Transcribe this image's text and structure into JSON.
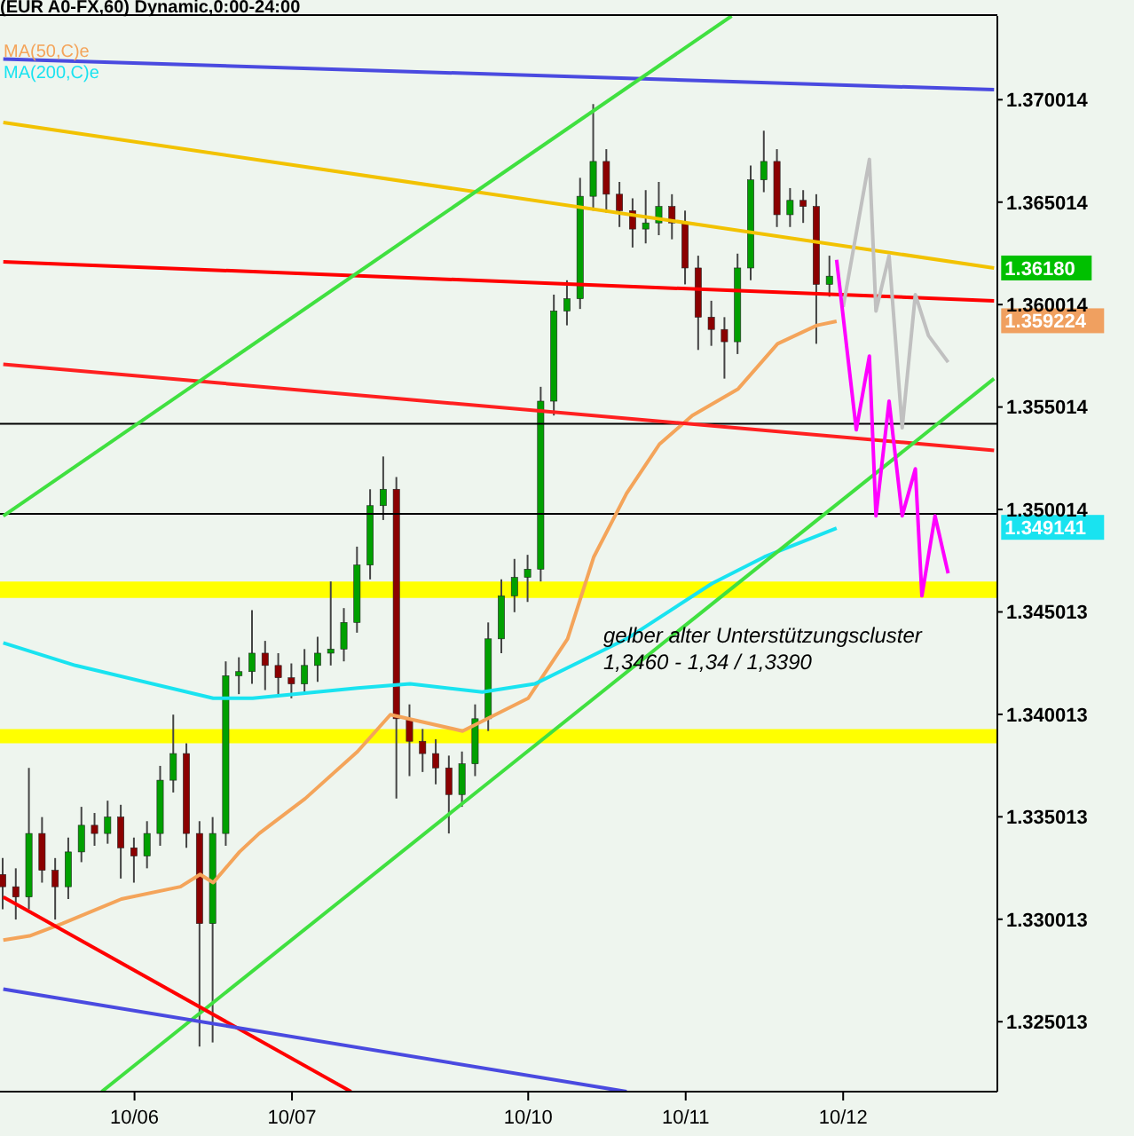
{
  "chart_data": {
    "type": "candlestick",
    "title": "(EUR A0-FX,60) Dynamic,0:00-24:00",
    "categories": [
      null,
      null,
      null,
      null,
      null,
      null,
      null,
      null,
      null,
      null,
      null,
      null,
      null,
      null,
      null,
      null,
      null,
      null,
      null,
      null,
      "10/06",
      null,
      null,
      null,
      null,
      null,
      null,
      null,
      null,
      null,
      null,
      null,
      null,
      null,
      null,
      null,
      null,
      null,
      null,
      null,
      null,
      null,
      null,
      null,
      "10/07",
      null,
      null,
      null,
      null,
      null,
      null,
      null,
      null,
      null,
      null,
      null,
      null,
      null,
      null,
      null,
      null,
      null,
      null,
      null,
      null,
      null,
      null,
      null,
      null,
      null,
      null,
      null,
      null,
      null,
      null,
      null,
      null,
      null,
      null,
      null,
      "10/10",
      null,
      null,
      null,
      null,
      null,
      null,
      null,
      null,
      null,
      null,
      null,
      null,
      null,
      null,
      null,
      null,
      null,
      null,
      null,
      null,
      null,
      null,
      null,
      "10/11",
      null,
      null,
      null,
      null,
      null,
      null,
      null,
      null,
      null,
      null,
      null,
      null,
      null,
      null,
      null,
      null,
      null,
      null,
      null,
      null,
      null,
      null,
      null,
      "10/12",
      null,
      null,
      null,
      null,
      null,
      null,
      null,
      null,
      null,
      null,
      null,
      null,
      null,
      null,
      null,
      null,
      null,
      null,
      null,
      null,
      null,
      null,
      null
    ],
    "ohlc": [
      [
        1.3322,
        1.333,
        1.3305,
        1.3316
      ],
      null,
      [
        1.3316,
        1.3325,
        1.33,
        1.3311
      ],
      null,
      [
        1.3311,
        1.3374,
        1.3305,
        1.3342
      ],
      null,
      [
        1.3342,
        1.335,
        1.3318,
        1.3324
      ],
      null,
      [
        1.3324,
        1.333,
        1.33,
        1.3316
      ],
      null,
      [
        1.3316,
        1.334,
        1.331,
        1.3333
      ],
      null,
      [
        1.3333,
        1.3355,
        1.3328,
        1.3346
      ],
      null,
      [
        1.3346,
        1.3352,
        1.3336,
        1.3342
      ],
      null,
      [
        1.3342,
        1.3358,
        1.3337,
        1.335
      ],
      null,
      [
        1.335,
        1.3356,
        1.332,
        1.3335
      ],
      null,
      [
        1.3335,
        1.334,
        1.3318,
        1.3331
      ],
      null,
      [
        1.3331,
        1.3348,
        1.3325,
        1.3342
      ],
      null,
      [
        1.3342,
        1.3375,
        1.3336,
        1.3368
      ],
      null,
      [
        1.3368,
        1.34,
        1.3362,
        1.3381
      ],
      null,
      [
        1.3381,
        1.3386,
        1.3335,
        1.3342
      ],
      null,
      [
        1.3342,
        1.3348,
        1.3238,
        1.3298
      ],
      null,
      [
        1.3298,
        1.335,
        1.324,
        1.3342
      ],
      null,
      [
        1.3342,
        1.3426,
        1.3336,
        1.3419
      ],
      null,
      [
        1.3419,
        1.3428,
        1.341,
        1.3421
      ],
      null,
      [
        1.3421,
        1.3451,
        1.3415,
        1.343
      ],
      null,
      [
        1.343,
        1.3436,
        1.3412,
        1.3424
      ],
      null,
      [
        1.3424,
        1.343,
        1.341,
        1.3418
      ],
      null,
      [
        1.3418,
        1.3425,
        1.3408,
        1.3415
      ],
      null,
      [
        1.3415,
        1.3432,
        1.341,
        1.3424
      ],
      null,
      [
        1.3424,
        1.3438,
        1.3416,
        1.343
      ],
      null,
      [
        1.343,
        1.3465,
        1.3424,
        1.3432
      ],
      null,
      [
        1.3432,
        1.3452,
        1.3426,
        1.3445
      ],
      null,
      [
        1.3445,
        1.3482,
        1.344,
        1.3473
      ],
      null,
      [
        1.3473,
        1.351,
        1.3466,
        1.3502
      ],
      null,
      [
        1.3502,
        1.3526,
        1.3495,
        1.351
      ],
      null,
      [
        1.351,
        1.3516,
        1.3359,
        1.3398
      ],
      null,
      [
        1.3398,
        1.3405,
        1.337,
        1.3387
      ],
      null,
      [
        1.3387,
        1.3393,
        1.3372,
        1.3381
      ],
      null,
      [
        1.3381,
        1.3388,
        1.3366,
        1.3374
      ],
      null,
      [
        1.3374,
        1.338,
        1.3342,
        1.3361
      ],
      null,
      [
        1.3361,
        1.3382,
        1.3355,
        1.3376
      ],
      null,
      [
        1.3376,
        1.3405,
        1.337,
        1.3398
      ],
      null,
      [
        1.3398,
        1.3445,
        1.3392,
        1.3437
      ],
      null,
      [
        1.3437,
        1.3466,
        1.343,
        1.3458
      ],
      null,
      [
        1.3458,
        1.3476,
        1.345,
        1.3467
      ],
      null,
      [
        1.3467,
        1.3478,
        1.3455,
        1.3471
      ],
      null,
      [
        1.3471,
        1.356,
        1.3465,
        1.3553
      ],
      null,
      [
        1.3553,
        1.3605,
        1.3546,
        1.3597
      ],
      null,
      [
        1.3597,
        1.3612,
        1.359,
        1.3603
      ],
      null,
      [
        1.3603,
        1.3662,
        1.3598,
        1.3653
      ],
      null,
      [
        1.3653,
        1.3698,
        1.3646,
        1.367
      ],
      null,
      [
        1.367,
        1.3676,
        1.3645,
        1.3654
      ],
      null,
      [
        1.3654,
        1.366,
        1.3638,
        1.3646
      ],
      null,
      [
        1.3646,
        1.3652,
        1.3628,
        1.3637
      ],
      null,
      [
        1.3637,
        1.3656,
        1.363,
        1.364
      ],
      null,
      [
        1.364,
        1.366,
        1.3634,
        1.3648
      ],
      null,
      [
        1.3648,
        1.3654,
        1.3632,
        1.364
      ],
      null,
      [
        1.364,
        1.3646,
        1.361,
        1.3618
      ],
      null,
      [
        1.3618,
        1.3624,
        1.3578,
        1.3594
      ],
      null,
      [
        1.3594,
        1.3602,
        1.358,
        1.3588
      ],
      null,
      [
        1.3588,
        1.3594,
        1.3564,
        1.3582
      ],
      null,
      [
        1.3582,
        1.3625,
        1.3576,
        1.3618
      ],
      null,
      [
        1.3618,
        1.3668,
        1.3612,
        1.3661
      ],
      null,
      [
        1.3661,
        1.3685,
        1.3655,
        1.367
      ],
      null,
      [
        1.367,
        1.3676,
        1.3638,
        1.3644
      ],
      null,
      [
        1.3644,
        1.3657,
        1.3638,
        1.3651
      ],
      null,
      [
        1.3651,
        1.3656,
        1.364,
        1.3648
      ],
      null,
      [
        1.3648,
        1.3654,
        1.3581,
        1.361
      ],
      null,
      [
        1.361,
        1.3624,
        1.3604,
        1.3614
      ],
      null,
      null,
      null,
      null,
      null,
      null,
      null,
      null,
      null,
      null,
      null,
      null,
      null,
      null,
      null,
      null,
      null,
      null,
      null,
      null,
      null,
      null,
      null,
      null,
      null
    ],
    "series": [
      {
        "name": "MA(50,C)e",
        "type": "line",
        "color": "#f4a45a",
        "values": [
          1.329,
          null,
          null,
          null,
          1.3292,
          null,
          null,
          null,
          null,
          1.3298,
          null,
          null,
          null,
          null,
          null,
          null,
          null,
          null,
          1.331,
          null,
          null,
          null,
          null,
          null,
          null,
          null,
          null,
          1.3316,
          null,
          null,
          1.3322,
          null,
          1.3318,
          null,
          null,
          null,
          1.3333,
          null,
          null,
          1.3342,
          null,
          null,
          null,
          null,
          null,
          null,
          1.3359,
          null,
          null,
          null,
          null,
          null,
          null,
          null,
          1.3382,
          null,
          null,
          null,
          null,
          1.34,
          null,
          null,
          null,
          null,
          null,
          null,
          null,
          null,
          null,
          null,
          1.3392,
          null,
          null,
          null,
          null,
          null,
          null,
          null,
          null,
          null,
          1.3408,
          null,
          null,
          null,
          null,
          null,
          1.3437,
          null,
          null,
          null,
          1.3477,
          null,
          null,
          null,
          null,
          1.3508,
          null,
          null,
          null,
          null,
          1.3532,
          null,
          null,
          null,
          null,
          1.3546,
          null,
          null,
          null,
          null,
          null,
          null,
          1.3559,
          null,
          null,
          null,
          null,
          null,
          1.3581,
          null,
          null,
          null,
          null,
          null,
          1.359,
          null,
          null,
          1.3592,
          null,
          null,
          null,
          null,
          null,
          null,
          null,
          null,
          null,
          null,
          null,
          null,
          null,
          null,
          null,
          null,
          null,
          null,
          null,
          null,
          null,
          null,
          null,
          null
        ]
      },
      {
        "name": "MA(200,C)e",
        "type": "line",
        "color": "#19e3f0",
        "values": [
          1.3435,
          null,
          null,
          null,
          null,
          null,
          null,
          null,
          null,
          null,
          null,
          1.3424,
          null,
          null,
          null,
          null,
          null,
          null,
          null,
          null,
          null,
          null,
          null,
          null,
          null,
          null,
          null,
          null,
          null,
          null,
          null,
          null,
          1.3408,
          null,
          null,
          null,
          null,
          null,
          1.3408,
          null,
          null,
          null,
          null,
          null,
          null,
          null,
          null,
          null,
          null,
          null,
          null,
          null,
          null,
          null,
          1.3413,
          null,
          null,
          null,
          null,
          null,
          null,
          null,
          1.3415,
          null,
          null,
          null,
          null,
          null,
          null,
          null,
          null,
          null,
          null,
          1.3411,
          null,
          null,
          null,
          null,
          null,
          null,
          null,
          1.3415,
          null,
          null,
          null,
          null,
          null,
          null,
          null,
          null,
          null,
          null,
          null,
          null,
          null,
          1.3437,
          null,
          null,
          null,
          null,
          null,
          null,
          null,
          null,
          null,
          null,
          null,
          null,
          1.3464,
          null,
          null,
          null,
          null,
          null,
          null,
          null,
          1.3477,
          null,
          null,
          null,
          null,
          null,
          null,
          null,
          null,
          null,
          null,
          1.3491,
          null,
          null,
          null,
          null,
          null,
          null,
          null,
          null,
          null,
          null,
          null,
          null,
          null,
          null,
          null,
          null,
          null,
          null,
          null,
          null,
          null,
          null,
          null,
          null
        ]
      },
      {
        "type": "line",
        "color": "#f2c200",
        "values": [
          1.3689,
          null,
          null,
          null,
          null,
          null,
          null,
          null,
          null,
          null,
          null,
          null,
          null,
          null,
          null,
          null,
          null,
          null,
          null,
          null,
          null,
          null,
          null,
          null,
          null,
          null,
          null,
          null,
          null,
          null,
          null,
          null,
          null,
          null,
          null,
          null,
          null,
          null,
          null,
          null,
          null,
          null,
          null,
          null,
          null,
          null,
          null,
          null,
          null,
          null,
          null,
          null,
          null,
          null,
          null,
          null,
          null,
          null,
          null,
          null,
          null,
          null,
          null,
          null,
          null,
          null,
          null,
          null,
          null,
          null,
          null,
          null,
          null,
          null,
          null,
          null,
          null,
          null,
          null,
          null,
          null,
          null,
          null,
          null,
          null,
          null,
          null,
          null,
          null,
          null,
          null,
          null,
          null,
          null,
          null,
          null,
          null,
          null,
          null,
          null,
          null,
          null,
          null,
          null,
          null,
          null,
          null,
          null,
          null,
          null,
          null,
          null,
          null,
          null,
          null,
          null,
          null,
          null,
          null,
          null,
          null,
          null,
          null,
          null,
          null,
          null,
          null,
          null,
          null,
          null,
          null,
          null,
          null,
          null,
          null,
          null,
          null,
          null,
          null,
          null,
          null,
          null,
          null,
          null,
          null,
          null,
          null,
          null,
          null,
          null,
          null,
          1.3618
        ]
      },
      {
        "type": "line",
        "color": "#ff0000",
        "values": [
          1.3621,
          null,
          null,
          null,
          null,
          null,
          null,
          null,
          null,
          null,
          null,
          null,
          null,
          null,
          null,
          null,
          null,
          null,
          null,
          null,
          null,
          null,
          null,
          null,
          null,
          null,
          null,
          null,
          null,
          null,
          null,
          null,
          null,
          null,
          null,
          null,
          null,
          null,
          null,
          null,
          null,
          null,
          null,
          null,
          null,
          null,
          null,
          null,
          null,
          null,
          null,
          null,
          null,
          null,
          null,
          null,
          null,
          null,
          null,
          null,
          null,
          null,
          null,
          null,
          null,
          null,
          null,
          null,
          null,
          null,
          null,
          null,
          null,
          null,
          null,
          null,
          null,
          null,
          null,
          null,
          null,
          null,
          null,
          null,
          null,
          null,
          null,
          null,
          null,
          null,
          null,
          null,
          null,
          null,
          null,
          null,
          null,
          null,
          null,
          null,
          null,
          null,
          null,
          null,
          null,
          null,
          null,
          null,
          null,
          null,
          null,
          null,
          null,
          null,
          null,
          null,
          null,
          null,
          null,
          null,
          null,
          null,
          null,
          null,
          null,
          null,
          null,
          null,
          null,
          null,
          null,
          null,
          null,
          null,
          null,
          null,
          null,
          null,
          null,
          null,
          null,
          null,
          null,
          null,
          null,
          null,
          null,
          null,
          null,
          null,
          null,
          1.3602
        ]
      },
      {
        "type": "line",
        "color": "#ff2020",
        "values": [
          1.3571,
          null,
          null,
          null,
          null,
          null,
          null,
          null,
          null,
          null,
          null,
          null,
          null,
          null,
          null,
          null,
          null,
          null,
          null,
          null,
          null,
          null,
          null,
          null,
          null,
          null,
          null,
          null,
          null,
          null,
          null,
          null,
          null,
          null,
          null,
          null,
          null,
          null,
          null,
          null,
          null,
          null,
          null,
          null,
          null,
          null,
          null,
          null,
          null,
          null,
          null,
          null,
          null,
          null,
          null,
          null,
          null,
          null,
          null,
          null,
          null,
          null,
          null,
          null,
          null,
          null,
          null,
          null,
          null,
          null,
          null,
          null,
          null,
          null,
          null,
          null,
          null,
          null,
          null,
          null,
          null,
          null,
          null,
          null,
          null,
          null,
          null,
          null,
          null,
          null,
          null,
          null,
          null,
          null,
          null,
          null,
          null,
          null,
          null,
          null,
          null,
          null,
          null,
          null,
          null,
          null,
          null,
          null,
          null,
          null,
          null,
          null,
          null,
          null,
          null,
          null,
          null,
          null,
          null,
          null,
          null,
          null,
          null,
          null,
          null,
          null,
          null,
          null,
          null,
          null,
          null,
          null,
          null,
          null,
          null,
          null,
          null,
          null,
          null,
          null,
          null,
          null,
          null,
          null,
          null,
          null,
          null,
          null,
          null,
          null,
          null,
          1.3529
        ]
      },
      {
        "type": "line",
        "color": "#4a4ae0",
        "values": [
          1.372,
          null,
          null,
          null,
          null,
          null,
          null,
          null,
          null,
          null,
          null,
          null,
          null,
          null,
          null,
          null,
          null,
          null,
          null,
          null,
          null,
          null,
          null,
          null,
          null,
          null,
          null,
          null,
          null,
          null,
          null,
          null,
          null,
          null,
          null,
          null,
          null,
          null,
          null,
          null,
          null,
          null,
          null,
          null,
          null,
          null,
          null,
          null,
          null,
          null,
          null,
          null,
          null,
          null,
          null,
          null,
          null,
          null,
          null,
          null,
          null,
          null,
          null,
          null,
          null,
          null,
          null,
          null,
          null,
          null,
          null,
          null,
          null,
          null,
          null,
          null,
          null,
          null,
          null,
          null,
          null,
          null,
          null,
          null,
          null,
          null,
          null,
          null,
          null,
          null,
          null,
          null,
          null,
          null,
          null,
          null,
          null,
          null,
          null,
          null,
          null,
          null,
          null,
          null,
          null,
          null,
          null,
          null,
          null,
          null,
          null,
          null,
          null,
          null,
          null,
          null,
          null,
          null,
          null,
          null,
          null,
          null,
          null,
          null,
          null,
          null,
          null,
          null,
          null,
          null,
          null,
          null,
          null,
          null,
          null,
          null,
          null,
          null,
          null,
          null,
          null,
          null,
          null,
          null,
          null,
          null,
          null,
          null,
          null,
          null,
          null,
          1.3705
        ]
      },
      {
        "type": "line",
        "color": "#40e040",
        "values": [
          1.3497,
          null,
          null,
          null,
          null,
          null,
          null,
          null,
          null,
          null,
          null,
          null,
          null,
          null,
          null,
          null,
          null,
          null,
          null,
          null,
          null,
          null,
          null,
          null,
          null,
          null,
          null,
          null,
          null,
          null,
          null,
          null,
          null,
          null,
          null,
          null,
          null,
          null,
          null,
          null,
          null,
          null,
          null,
          null,
          null,
          null,
          null,
          null,
          null,
          null,
          null,
          null,
          null,
          null,
          null,
          null,
          null,
          null,
          null,
          null,
          null,
          null,
          null,
          null,
          null,
          null,
          null,
          null,
          null,
          null,
          null,
          null,
          null,
          null,
          null,
          null,
          null,
          null,
          null,
          null,
          null,
          null,
          null,
          null,
          null,
          null,
          null,
          null,
          null,
          null,
          null,
          null,
          null,
          null,
          null,
          null,
          null,
          null,
          null,
          null,
          null,
          null,
          null,
          null,
          null,
          null,
          null,
          null,
          null,
          null,
          null,
          1.3741,
          null,
          null,
          null,
          null,
          null,
          null,
          null,
          null,
          null,
          null,
          null,
          null,
          null,
          null,
          null,
          null,
          null,
          null,
          null,
          null,
          null,
          null,
          null,
          null,
          null,
          null,
          null,
          null,
          null,
          null,
          null,
          null,
          null,
          null,
          null,
          null,
          null,
          null,
          null,
          null
        ]
      },
      {
        "type": "line",
        "color": "#40e040",
        "values": [
          null,
          null,
          null,
          null,
          null,
          null,
          null,
          null,
          null,
          null,
          null,
          null,
          null,
          null,
          null,
          1.3216,
          null,
          null,
          null,
          null,
          null,
          null,
          null,
          null,
          null,
          null,
          null,
          null,
          null,
          null,
          null,
          null,
          null,
          null,
          null,
          null,
          null,
          null,
          null,
          null,
          null,
          null,
          null,
          null,
          null,
          null,
          null,
          null,
          null,
          null,
          null,
          null,
          null,
          null,
          null,
          null,
          null,
          null,
          null,
          null,
          null,
          null,
          null,
          null,
          null,
          null,
          null,
          null,
          null,
          null,
          null,
          null,
          null,
          null,
          null,
          null,
          null,
          null,
          null,
          null,
          null,
          null,
          null,
          null,
          null,
          null,
          null,
          null,
          null,
          null,
          null,
          null,
          null,
          null,
          null,
          null,
          null,
          null,
          null,
          null,
          null,
          null,
          null,
          null,
          null,
          null,
          null,
          null,
          null,
          null,
          null,
          null,
          null,
          null,
          null,
          null,
          null,
          null,
          null,
          null,
          null,
          null,
          null,
          null,
          null,
          null,
          null,
          null,
          null,
          null,
          null,
          null,
          null,
          null,
          null,
          null,
          null,
          null,
          null,
          null,
          null,
          null,
          null,
          null,
          null,
          null,
          null,
          null,
          null,
          null,
          null,
          1.3564
        ]
      },
      {
        "type": "line",
        "color": "#ff0000",
        "values": [
          1.3311,
          null,
          null,
          null,
          null,
          null,
          null,
          null,
          null,
          null,
          null,
          null,
          null,
          null,
          null,
          null,
          null,
          null,
          null,
          null,
          null,
          null,
          null,
          null,
          null,
          null,
          null,
          null,
          null,
          null,
          null,
          null,
          null,
          null,
          null,
          null,
          null,
          null,
          null,
          null,
          null,
          null,
          null,
          null,
          null,
          null,
          null,
          null,
          null,
          null,
          null,
          null,
          null,
          1.3216,
          null,
          null,
          null,
          null,
          null,
          null,
          null,
          null,
          null,
          null,
          null,
          null,
          null,
          null,
          null,
          null,
          null,
          null,
          null,
          null,
          null,
          null,
          null,
          null,
          null,
          null,
          null,
          null,
          null,
          null,
          null,
          null,
          null,
          null,
          null,
          null,
          null,
          null,
          null,
          null,
          null,
          null,
          null,
          null,
          null,
          null,
          null,
          null,
          null,
          null,
          null,
          null,
          null,
          null,
          null,
          null,
          null,
          null,
          null,
          null,
          null,
          null,
          null,
          null,
          null,
          null,
          null,
          null,
          null,
          null,
          null,
          null,
          null,
          null,
          null,
          null,
          null,
          null,
          null,
          null,
          null,
          null,
          null,
          null,
          null,
          null,
          null,
          null,
          null,
          null,
          null,
          null,
          null,
          null,
          null,
          null,
          null,
          null
        ]
      },
      {
        "type": "line",
        "color": "#4a4ae0",
        "values": [
          1.3266,
          null,
          null,
          null,
          null,
          null,
          null,
          null,
          null,
          null,
          null,
          null,
          null,
          null,
          null,
          null,
          null,
          null,
          null,
          null,
          null,
          null,
          null,
          null,
          null,
          null,
          null,
          null,
          null,
          null,
          null,
          null,
          null,
          null,
          null,
          null,
          null,
          null,
          null,
          null,
          null,
          null,
          null,
          null,
          null,
          null,
          null,
          null,
          null,
          null,
          null,
          null,
          null,
          null,
          null,
          null,
          null,
          null,
          null,
          null,
          null,
          null,
          null,
          null,
          null,
          null,
          null,
          null,
          null,
          null,
          null,
          null,
          null,
          null,
          null,
          null,
          null,
          null,
          null,
          null,
          null,
          null,
          null,
          null,
          null,
          null,
          null,
          null,
          null,
          null,
          null,
          null,
          null,
          null,
          null,
          1.3216,
          null,
          null,
          null,
          null,
          null,
          null,
          null,
          null,
          null,
          null,
          null,
          null,
          null,
          null,
          null,
          null,
          null,
          null,
          null,
          null,
          null,
          null,
          null,
          null,
          null,
          null,
          null,
          null,
          null,
          null,
          null,
          null,
          null,
          null,
          null,
          null,
          null,
          null,
          null,
          null,
          null,
          null,
          null,
          null,
          null,
          null,
          null,
          null,
          null,
          null,
          null,
          null,
          null,
          null,
          null,
          null
        ]
      },
      {
        "type": "line",
        "color": "#c0c0c0",
        "values": [
          null,
          null,
          null,
          null,
          null,
          null,
          null,
          null,
          null,
          null,
          null,
          null,
          null,
          null,
          null,
          null,
          null,
          null,
          null,
          null,
          null,
          null,
          null,
          null,
          null,
          null,
          null,
          null,
          null,
          null,
          null,
          null,
          null,
          null,
          null,
          null,
          null,
          null,
          null,
          null,
          null,
          null,
          null,
          null,
          null,
          null,
          null,
          null,
          null,
          null,
          null,
          null,
          null,
          null,
          null,
          null,
          null,
          null,
          null,
          null,
          null,
          null,
          null,
          null,
          null,
          null,
          null,
          null,
          null,
          null,
          null,
          null,
          null,
          null,
          null,
          null,
          null,
          null,
          null,
          null,
          null,
          null,
          null,
          null,
          null,
          null,
          null,
          null,
          null,
          null,
          null,
          null,
          null,
          null,
          null,
          null,
          null,
          null,
          null,
          null,
          null,
          null,
          null,
          null,
          null,
          null,
          null,
          null,
          null,
          null,
          null,
          null,
          null,
          null,
          null,
          null,
          null,
          null,
          null,
          null,
          null,
          null,
          null,
          null,
          null,
          null,
          null,
          null,
          1.3599,
          null,
          null,
          null,
          1.3671,
          1.3597,
          null,
          1.3624,
          null,
          1.354,
          null,
          1.3605,
          null,
          1.3585,
          null,
          null,
          1.3572,
          null,
          null,
          null,
          null,
          null,
          null,
          null
        ]
      },
      {
        "type": "line",
        "color": "#ff00ff",
        "values": [
          null,
          null,
          null,
          null,
          null,
          null,
          null,
          null,
          null,
          null,
          null,
          null,
          null,
          null,
          null,
          null,
          null,
          null,
          null,
          null,
          null,
          null,
          null,
          null,
          null,
          null,
          null,
          null,
          null,
          null,
          null,
          null,
          null,
          null,
          null,
          null,
          null,
          null,
          null,
          null,
          null,
          null,
          null,
          null,
          null,
          null,
          null,
          null,
          null,
          null,
          null,
          null,
          null,
          null,
          null,
          null,
          null,
          null,
          null,
          null,
          null,
          null,
          null,
          null,
          null,
          null,
          null,
          null,
          null,
          null,
          null,
          null,
          null,
          null,
          null,
          null,
          null,
          null,
          null,
          null,
          null,
          null,
          null,
          null,
          null,
          null,
          null,
          null,
          null,
          null,
          null,
          null,
          null,
          null,
          null,
          null,
          null,
          null,
          null,
          null,
          null,
          null,
          null,
          null,
          null,
          null,
          null,
          null,
          null,
          null,
          null,
          null,
          null,
          null,
          null,
          null,
          null,
          null,
          null,
          null,
          null,
          null,
          null,
          null,
          null,
          null,
          null,
          1.3622,
          null,
          null,
          1.3539,
          null,
          1.3575,
          1.3497,
          null,
          1.3553,
          null,
          1.3497,
          null,
          1.352,
          1.3458,
          null,
          1.3497,
          null,
          1.3469,
          null,
          null,
          null,
          null,
          null,
          null,
          null
        ]
      }
    ],
    "ylim": [
      1.3216,
      1.3741
    ],
    "yticks": [
      1.325013,
      1.330013,
      1.335013,
      1.340013,
      1.345013,
      1.350014,
      1.355014,
      1.360014,
      1.365014,
      1.370014
    ],
    "ref_lines": [
      {
        "axis": "y",
        "value": 1.3542,
        "color": "#000000"
      },
      {
        "axis": "y",
        "value": 1.3498,
        "color": "#000000"
      }
    ],
    "bands": [
      {
        "axis": "y",
        "from": 1.3457,
        "to": 1.3465,
        "color": "#ffff00"
      },
      {
        "axis": "y",
        "from": 1.3386,
        "to": 1.3393,
        "color": "#ffff00"
      }
    ],
    "annotations": [
      "1.36180",
      "1.359224",
      "1.349141",
      "gelber alter Unterstützungscluster",
      "1,3460 - 1,34 / 1,3390"
    ],
    "legend": "top left"
  }
}
